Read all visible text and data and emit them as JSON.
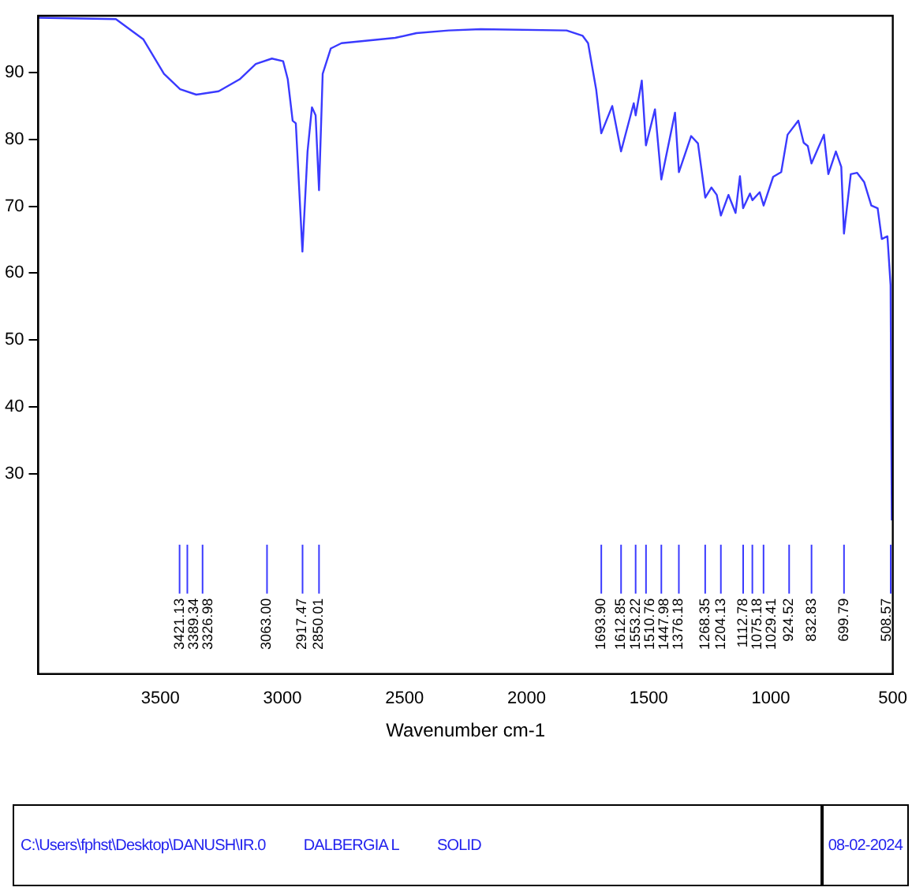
{
  "chart_data": {
    "type": "line",
    "xlabel": "Wavenumber cm-1",
    "xlim": [
      4000,
      500
    ],
    "xticks": [
      3500,
      3000,
      2500,
      2000,
      1500,
      1000,
      500
    ],
    "ylim": [
      0,
      98.5
    ],
    "yticks": [
      30,
      40,
      50,
      60,
      70,
      80,
      90
    ],
    "grid": false,
    "legend": false,
    "marker": "none",
    "line_style": "solid",
    "series": [
      {
        "color": "#3a3aff",
        "x": [
          4000,
          3682,
          3570,
          3485,
          3419,
          3353,
          3261,
          3175,
          3109,
          3043,
          2997,
          2978,
          2958,
          2945,
          2918,
          2897,
          2879,
          2864,
          2850,
          2835,
          2802,
          2758,
          2538,
          2451,
          2319,
          2188,
          1836,
          1770,
          1748,
          1715,
          1694,
          1649,
          1613,
          1561,
          1553,
          1528,
          1511,
          1474,
          1448,
          1392,
          1376,
          1326,
          1298,
          1268,
          1243,
          1221,
          1204,
          1173,
          1144,
          1126,
          1113,
          1085,
          1075,
          1045,
          1029,
          990,
          957,
          931,
          887,
          865,
          848,
          833,
          782,
          764,
          733,
          711,
          700,
          672,
          646,
          617,
          588,
          562,
          545,
          522,
          509,
          504
        ],
        "values": [
          98.2,
          98,
          95,
          89.8,
          87.5,
          86.7,
          87.2,
          89,
          91.3,
          92.1,
          91.7,
          89,
          82.8,
          82.4,
          63.2,
          78.2,
          84.8,
          83.6,
          72.4,
          89.8,
          93.6,
          94.4,
          95.2,
          95.9,
          96.3,
          96.5,
          96.3,
          95.5,
          94.4,
          87.5,
          80.9,
          85,
          78.2,
          85.4,
          83.6,
          88.8,
          79.1,
          84.5,
          74,
          84,
          75.1,
          80.5,
          79.4,
          71.3,
          72.8,
          71.7,
          68.6,
          71.7,
          69,
          74.5,
          69.7,
          71.9,
          70.9,
          72.1,
          70.1,
          74.4,
          75.1,
          80.7,
          82.8,
          79.5,
          79,
          76.4,
          80.7,
          74.8,
          78.2,
          75.9,
          65.9,
          74.8,
          75,
          73.6,
          70.1,
          69.7,
          65.1,
          65.5,
          58.2,
          23
        ]
      }
    ],
    "ref_lines": [
      {
        "axis": "x",
        "value": 3421.13,
        "label": "3421.13",
        "color": "#3a3aff"
      },
      {
        "axis": "x",
        "value": 3389.34,
        "label": "3389.34",
        "color": "#3a3aff"
      },
      {
        "axis": "x",
        "value": 3326.98,
        "label": "3326.98",
        "color": "#3a3aff"
      },
      {
        "axis": "x",
        "value": 3063,
        "label": "3063.00",
        "color": "#3a3aff"
      },
      {
        "axis": "x",
        "value": 2917.47,
        "label": "2917.47",
        "color": "#3a3aff"
      },
      {
        "axis": "x",
        "value": 2850.01,
        "label": "2850.01",
        "color": "#3a3aff"
      },
      {
        "axis": "x",
        "value": 1693.9,
        "label": "1693.90",
        "color": "#3a3aff"
      },
      {
        "axis": "x",
        "value": 1612.85,
        "label": "1612.85",
        "color": "#3a3aff"
      },
      {
        "axis": "x",
        "value": 1553.22,
        "label": "1553.22",
        "color": "#3a3aff"
      },
      {
        "axis": "x",
        "value": 1510.76,
        "label": "1510.76",
        "color": "#3a3aff"
      },
      {
        "axis": "x",
        "value": 1447.98,
        "label": "1447.98",
        "color": "#3a3aff"
      },
      {
        "axis": "x",
        "value": 1376.18,
        "label": "1376.18",
        "color": "#3a3aff"
      },
      {
        "axis": "x",
        "value": 1268.35,
        "label": "1268.35",
        "color": "#3a3aff"
      },
      {
        "axis": "x",
        "value": 1204.13,
        "label": "1204.13",
        "color": "#3a3aff"
      },
      {
        "axis": "x",
        "value": 1112.78,
        "label": "1112.78",
        "color": "#3a3aff"
      },
      {
        "axis": "x",
        "value": 1075.18,
        "label": "1075.18",
        "color": "#3a3aff"
      },
      {
        "axis": "x",
        "value": 1029.41,
        "label": "1029.41",
        "color": "#3a3aff"
      },
      {
        "axis": "x",
        "value": 924.52,
        "label": "924.52",
        "color": "#3a3aff"
      },
      {
        "axis": "x",
        "value": 832.83,
        "label": "832.83",
        "color": "#3a3aff"
      },
      {
        "axis": "x",
        "value": 699.79,
        "label": "699.79",
        "color": "#3a3aff"
      },
      {
        "axis": "x",
        "value": 508.57,
        "label": "508.57",
        "color": "#3a3aff"
      }
    ],
    "annotations": [
      "C:\\Users\\fphst\\Desktop\\DANUSH\\IR.0",
      "DALBERGIA L",
      "SOLID",
      "08-02-2024"
    ]
  }
}
